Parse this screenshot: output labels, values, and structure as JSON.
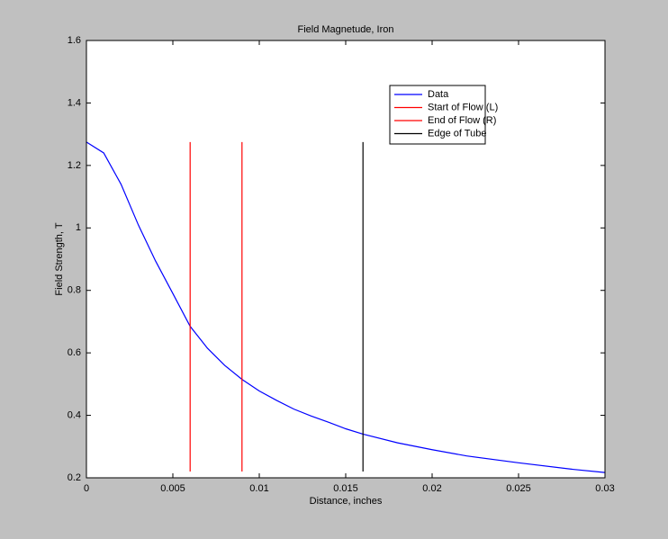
{
  "chart_data": {
    "type": "line",
    "title": "Field Magnetude, Iron",
    "xlabel": "Distance, inches",
    "ylabel": "Field Strength, T",
    "xlim": [
      0,
      0.03
    ],
    "ylim": [
      0.2,
      1.6
    ],
    "xticks": [
      0,
      0.005,
      0.01,
      0.015,
      0.02,
      0.025,
      0.03
    ],
    "yticks": [
      0.2,
      0.4,
      0.6,
      0.8,
      1,
      1.2,
      1.4,
      1.6
    ],
    "grid": false,
    "legend": "northeast",
    "series": [
      {
        "name": "Data",
        "color": "#0000ff",
        "x": [
          0,
          0.001,
          0.002,
          0.003,
          0.004,
          0.005,
          0.006,
          0.007,
          0.008,
          0.009,
          0.01,
          0.011,
          0.012,
          0.013,
          0.014,
          0.015,
          0.016,
          0.018,
          0.02,
          0.022,
          0.025,
          0.028,
          0.03
        ],
        "values": [
          1.275,
          1.24,
          1.14,
          1.01,
          0.894,
          0.79,
          0.685,
          0.615,
          0.56,
          0.515,
          0.478,
          0.448,
          0.42,
          0.398,
          0.378,
          0.357,
          0.34,
          0.312,
          0.29,
          0.27,
          0.248,
          0.228,
          0.217
        ]
      },
      {
        "name": "Start of Flow (L)",
        "color": "#ff0000",
        "x": [
          0.006,
          0.006
        ],
        "values": [
          0.22,
          1.275
        ]
      },
      {
        "name": "End of Flow (R)",
        "color": "#ff0000",
        "x": [
          0.009,
          0.009
        ],
        "values": [
          0.22,
          1.275
        ]
      },
      {
        "name": "Edge of Tube",
        "color": "#000000",
        "x": [
          0.016,
          0.016
        ],
        "values": [
          0.22,
          1.275
        ]
      }
    ]
  }
}
